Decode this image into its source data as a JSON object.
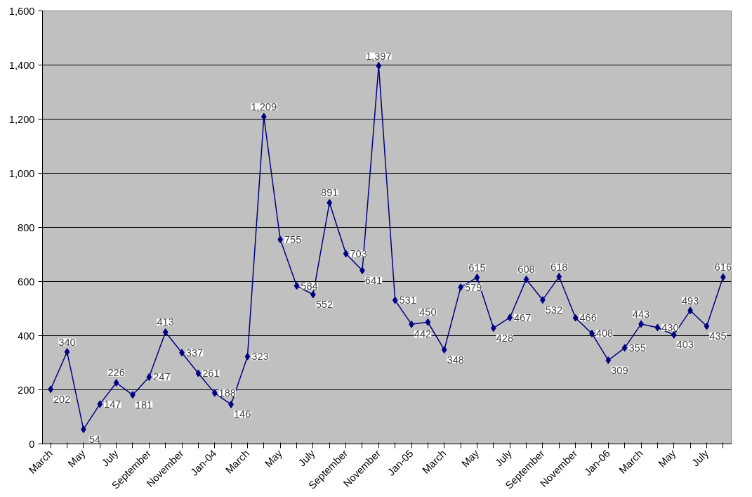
{
  "chart_data": {
    "type": "line",
    "categories": [
      "March",
      null,
      "May",
      null,
      "July",
      null,
      "September",
      null,
      "November",
      null,
      "Jan-04",
      null,
      "March",
      null,
      "May",
      null,
      "July",
      null,
      "September",
      null,
      "November",
      null,
      "Jan-05",
      null,
      "March",
      null,
      "May",
      null,
      "July",
      null,
      "September",
      null,
      "November",
      null,
      "Jan-06",
      null,
      "March",
      null,
      "May",
      null,
      "July",
      null
    ],
    "series": [
      {
        "color": "#000080",
        "values": [
          202,
          340,
          54,
          147,
          226,
          181,
          247,
          413,
          337,
          261,
          188,
          146,
          323,
          1209,
          755,
          584,
          552,
          891,
          703,
          641,
          1397,
          531,
          442,
          450,
          348,
          579,
          615,
          428,
          467,
          608,
          532,
          618,
          466,
          408,
          309,
          355,
          443,
          430,
          403,
          493,
          435,
          616
        ],
        "value_labels": [
          "202",
          "340",
          "54",
          "147",
          "226",
          "181",
          "247",
          "413",
          "337",
          "261",
          "188",
          "146",
          "323",
          "1,209",
          "755",
          "584",
          "552",
          "891",
          "703",
          "641",
          "1,397",
          "531",
          "442",
          "450",
          "348",
          "579",
          "615",
          "428",
          "467",
          "608",
          "532",
          "618",
          "466",
          "408",
          "309",
          "355",
          "443",
          "430",
          "403",
          "493",
          "435",
          "616"
        ]
      }
    ],
    "ylim": [
      0,
      1600
    ],
    "yticks": [
      0,
      {
        "value": 200,
        "label": "200"
      },
      {
        "value": 400,
        "label": "400"
      },
      {
        "value": 600,
        "label": "600"
      },
      {
        "value": 800,
        "label": "800"
      },
      {
        "value": 1000,
        "label": "1,000"
      },
      {
        "value": 1200,
        "label": "1,200"
      },
      {
        "value": 1400,
        "label": "1,400"
      },
      {
        "value": 1600,
        "label": "1,600"
      }
    ],
    "grid": "y",
    "marker": "diamond",
    "line_style": "solid"
  }
}
